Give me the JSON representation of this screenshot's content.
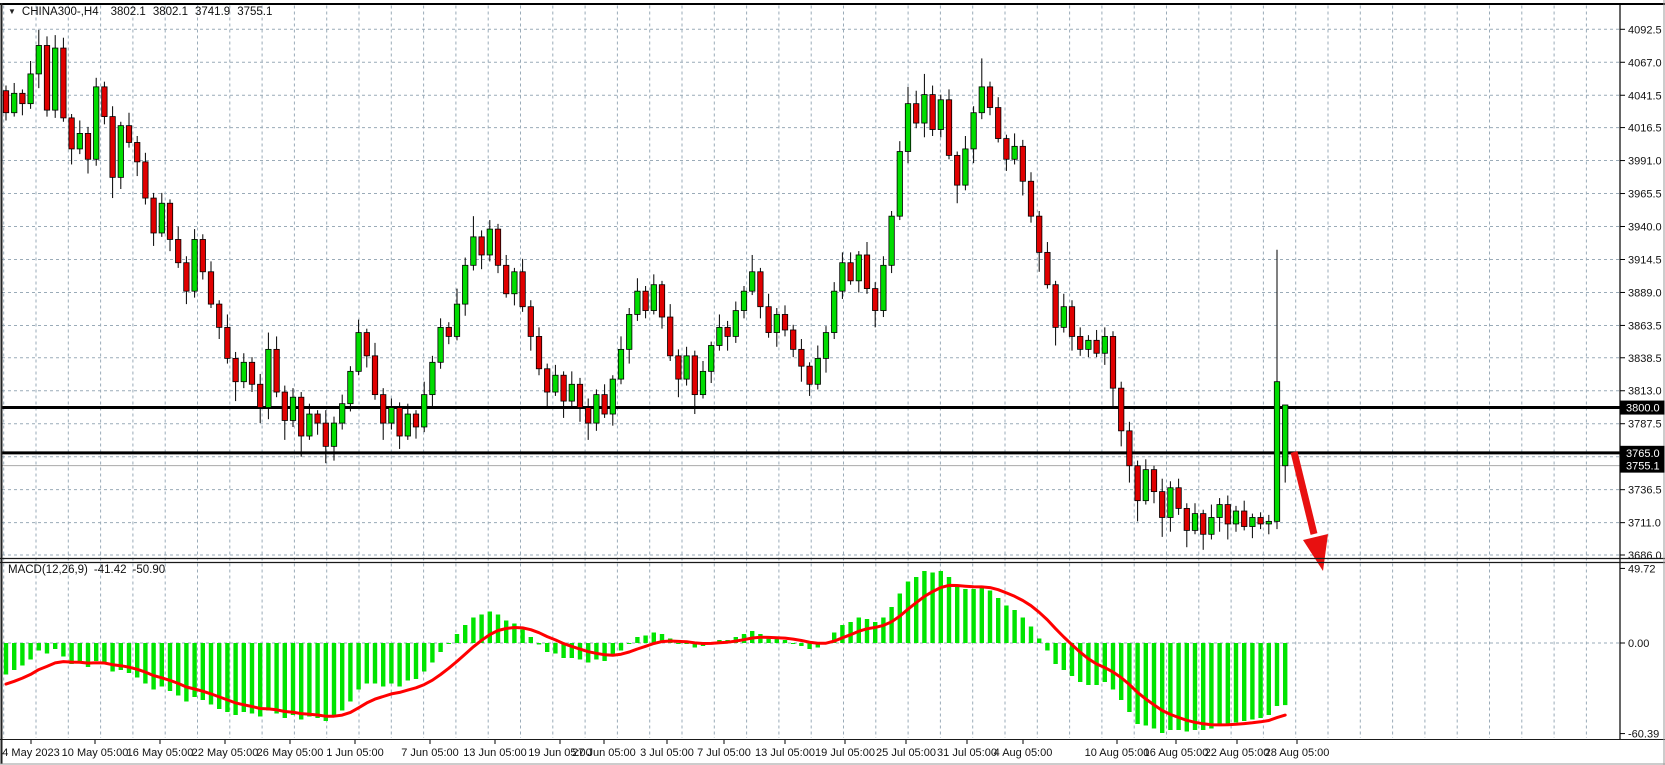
{
  "header": {
    "icon": "▼",
    "symbol_period": "CHINA300-,H4",
    "open": "3802.1",
    "high": "3802.1",
    "low": "3741.9",
    "close": "3755.1"
  },
  "indicator": {
    "label": "MACD(12,26,9)",
    "macd_value": "-41.42",
    "signal_value": "-50.90"
  },
  "colors": {
    "bull": "#00dc00",
    "bear": "#e00000",
    "wick": "#000000",
    "grid": "#9aabb8",
    "histogram": "#00e400",
    "signal": "#ff0000",
    "line_object": "#000000",
    "bid_line": "#aaaaaa",
    "arrow": "#e81010",
    "label_box": "#000000",
    "label_box_text": "#ffffff"
  },
  "chart_data": {
    "type": "candlestick",
    "symbol": "CHINA300-",
    "timeframe": "H4",
    "current_bar": {
      "open": 3802.1,
      "high": 3802.1,
      "low": 3741.9,
      "close": 3755.1
    },
    "price_axis": {
      "range": [
        3678,
        4104
      ],
      "ticks": [
        "4092.5",
        "4067.0",
        "4041.5",
        "4016.5",
        "3991.0",
        "3965.5",
        "3940.0",
        "3914.5",
        "3889.0",
        "3863.5",
        "3838.5",
        "3813.0",
        "3787.5",
        "3736.5",
        "3711.0",
        "3686.0"
      ],
      "unlabeled_gridlines": [
        3762.0
      ],
      "boxed_labels": [
        {
          "text": "3800.0",
          "price": 3800.0,
          "kind": "hline"
        },
        {
          "text": "3765.0",
          "price": 3765.0,
          "kind": "hline"
        },
        {
          "text": "3755.1",
          "price": 3755.1,
          "kind": "bid"
        }
      ]
    },
    "time_axis": {
      "labels": [
        [
          "4 May 2023",
          31
        ],
        [
          "10 May 05:00",
          95
        ],
        [
          "16 May 05:00",
          160
        ],
        [
          "22 May 05:00",
          225
        ],
        [
          "26 May 05:00",
          290
        ],
        [
          "1 Jun 05:00",
          355
        ],
        [
          "7 Jun 05:00",
          430
        ],
        [
          "13 Jun 05:00",
          495
        ],
        [
          "19 Jun 05:00",
          560
        ],
        [
          "27 Jun 05:00",
          604
        ],
        [
          "3 Jul 05:00",
          667
        ],
        [
          "7 Jul 05:00",
          724
        ],
        [
          "13 Jul 05:00",
          785
        ],
        [
          "19 Jul 05:00",
          845
        ],
        [
          "25 Jul 05:00",
          906
        ],
        [
          "31 Jul 05:00",
          967
        ],
        [
          "4 Aug 05:00",
          1023
        ],
        [
          "10 Aug 05:00",
          1117
        ],
        [
          "16 Aug 05:00",
          1176
        ],
        [
          "22 Aug 05:00",
          1237
        ],
        [
          "28 Aug 05:00",
          1297
        ]
      ]
    },
    "candles": [
      [
        4045,
        4049,
        4022,
        4028
      ],
      [
        4028,
        4051,
        4025,
        4043
      ],
      [
        4043,
        4046,
        4026,
        4035
      ],
      [
        4035,
        4068,
        4031,
        4058
      ],
      [
        4058,
        4092,
        4047,
        4080
      ],
      [
        4080,
        4087,
        4025,
        4030
      ],
      [
        4030,
        4088,
        4024,
        4078
      ],
      [
        4078,
        4086,
        4021,
        4024
      ],
      [
        4024,
        4027,
        3988,
        4000
      ],
      [
        4000,
        4022,
        3996,
        4012
      ],
      [
        4012,
        4017,
        3981,
        3992
      ],
      [
        3992,
        4055,
        3987,
        4048
      ],
      [
        4048,
        4052,
        4019,
        4025
      ],
      [
        4025,
        4033,
        3962,
        3978
      ],
      [
        3978,
        4021,
        3969,
        4018
      ],
      [
        4018,
        4028,
        4001,
        4005
      ],
      [
        4005,
        4010,
        3979,
        3990
      ],
      [
        3990,
        3997,
        3957,
        3962
      ],
      [
        3962,
        3966,
        3925,
        3935
      ],
      [
        3935,
        3966,
        3932,
        3958
      ],
      [
        3958,
        3961,
        3921,
        3930
      ],
      [
        3930,
        3940,
        3908,
        3912
      ],
      [
        3912,
        3917,
        3880,
        3890
      ],
      [
        3890,
        3938,
        3885,
        3930
      ],
      [
        3930,
        3934,
        3899,
        3905
      ],
      [
        3905,
        3913,
        3877,
        3880
      ],
      [
        3880,
        3883,
        3853,
        3862
      ],
      [
        3862,
        3872,
        3834,
        3838
      ],
      [
        3838,
        3843,
        3805,
        3820
      ],
      [
        3820,
        3842,
        3815,
        3835
      ],
      [
        3835,
        3839,
        3812,
        3818
      ],
      [
        3818,
        3826,
        3788,
        3800
      ],
      [
        3800,
        3858,
        3791,
        3845
      ],
      [
        3845,
        3855,
        3808,
        3812
      ],
      [
        3812,
        3817,
        3775,
        3790
      ],
      [
        3790,
        3815,
        3785,
        3808
      ],
      [
        3808,
        3812,
        3762,
        3778
      ],
      [
        3778,
        3803,
        3775,
        3795
      ],
      [
        3795,
        3798,
        3779,
        3788
      ],
      [
        3788,
        3798,
        3757,
        3770
      ],
      [
        3770,
        3793,
        3759,
        3788
      ],
      [
        3788,
        3810,
        3783,
        3803
      ],
      [
        3803,
        3832,
        3797,
        3828
      ],
      [
        3828,
        3868,
        3825,
        3858
      ],
      [
        3858,
        3861,
        3831,
        3840
      ],
      [
        3840,
        3850,
        3806,
        3810
      ],
      [
        3810,
        3815,
        3775,
        3788
      ],
      [
        3788,
        3807,
        3783,
        3800
      ],
      [
        3800,
        3804,
        3768,
        3778
      ],
      [
        3778,
        3803,
        3775,
        3795
      ],
      [
        3795,
        3798,
        3776,
        3785
      ],
      [
        3785,
        3820,
        3781,
        3810
      ],
      [
        3810,
        3840,
        3799,
        3835
      ],
      [
        3835,
        3869,
        3830,
        3862
      ],
      [
        3862,
        3866,
        3849,
        3855
      ],
      [
        3855,
        3892,
        3852,
        3880
      ],
      [
        3880,
        3916,
        3871,
        3910
      ],
      [
        3910,
        3948,
        3906,
        3932
      ],
      [
        3932,
        3937,
        3907,
        3918
      ],
      [
        3918,
        3945,
        3913,
        3938
      ],
      [
        3938,
        3942,
        3904,
        3910
      ],
      [
        3910,
        3918,
        3885,
        3888
      ],
      [
        3888,
        3908,
        3879,
        3905
      ],
      [
        3905,
        3915,
        3874,
        3878
      ],
      [
        3878,
        3883,
        3844,
        3855
      ],
      [
        3855,
        3862,
        3825,
        3830
      ],
      [
        3830,
        3834,
        3800,
        3812
      ],
      [
        3812,
        3833,
        3809,
        3825
      ],
      [
        3825,
        3828,
        3792,
        3805
      ],
      [
        3805,
        3828,
        3801,
        3818
      ],
      [
        3818,
        3823,
        3789,
        3800
      ],
      [
        3800,
        3807,
        3775,
        3788
      ],
      [
        3788,
        3814,
        3782,
        3810
      ],
      [
        3810,
        3818,
        3792,
        3795
      ],
      [
        3795,
        3825,
        3786,
        3822
      ],
      [
        3822,
        3855,
        3818,
        3845
      ],
      [
        3845,
        3877,
        3834,
        3872
      ],
      [
        3872,
        3900,
        3867,
        3890
      ],
      [
        3890,
        3894,
        3869,
        3875
      ],
      [
        3875,
        3903,
        3872,
        3895
      ],
      [
        3895,
        3898,
        3861,
        3870
      ],
      [
        3870,
        3880,
        3836,
        3840
      ],
      [
        3840,
        3845,
        3808,
        3822
      ],
      [
        3822,
        3847,
        3817,
        3840
      ],
      [
        3840,
        3844,
        3795,
        3810
      ],
      [
        3810,
        3836,
        3807,
        3828
      ],
      [
        3828,
        3851,
        3819,
        3848
      ],
      [
        3848,
        3872,
        3844,
        3862
      ],
      [
        3862,
        3867,
        3844,
        3855
      ],
      [
        3855,
        3882,
        3850,
        3875
      ],
      [
        3875,
        3894,
        3869,
        3890
      ],
      [
        3890,
        3918,
        3887,
        3905
      ],
      [
        3905,
        3908,
        3869,
        3878
      ],
      [
        3878,
        3888,
        3854,
        3858
      ],
      [
        3858,
        3877,
        3847,
        3872
      ],
      [
        3872,
        3879,
        3855,
        3860
      ],
      [
        3860,
        3864,
        3839,
        3845
      ],
      [
        3845,
        3853,
        3820,
        3832
      ],
      [
        3832,
        3835,
        3809,
        3818
      ],
      [
        3818,
        3848,
        3814,
        3838
      ],
      [
        3838,
        3863,
        3827,
        3858
      ],
      [
        3858,
        3897,
        3853,
        3890
      ],
      [
        3890,
        3920,
        3884,
        3912
      ],
      [
        3912,
        3920,
        3895,
        3898
      ],
      [
        3898,
        3921,
        3889,
        3918
      ],
      [
        3918,
        3928,
        3888,
        3892
      ],
      [
        3892,
        3897,
        3862,
        3875
      ],
      [
        3875,
        3917,
        3870,
        3910
      ],
      [
        3910,
        3952,
        3904,
        3948
      ],
      [
        3948,
        4006,
        3945,
        3998
      ],
      [
        3998,
        4048,
        3989,
        4035
      ],
      [
        4035,
        4045,
        4016,
        4020
      ],
      [
        4020,
        4058,
        4009,
        4042
      ],
      [
        4042,
        4049,
        4010,
        4015
      ],
      [
        4015,
        4042,
        4009,
        4038
      ],
      [
        4038,
        4046,
        3992,
        3995
      ],
      [
        3995,
        3998,
        3958,
        3972
      ],
      [
        3972,
        4010,
        3968,
        4000
      ],
      [
        4000,
        4033,
        3989,
        4028
      ],
      [
        4028,
        4070,
        4023,
        4048
      ],
      [
        4048,
        4052,
        4026,
        4032
      ],
      [
        4032,
        4040,
        4005,
        4008
      ],
      [
        4008,
        4011,
        3983,
        3992
      ],
      [
        3992,
        4012,
        3988,
        4002
      ],
      [
        4002,
        4007,
        3964,
        3975
      ],
      [
        3975,
        3982,
        3943,
        3948
      ],
      [
        3948,
        3952,
        3905,
        3920
      ],
      [
        3920,
        3928,
        3892,
        3895
      ],
      [
        3895,
        3898,
        3848,
        3862
      ],
      [
        3862,
        3888,
        3858,
        3878
      ],
      [
        3878,
        3883,
        3844,
        3855
      ],
      [
        3855,
        3862,
        3840,
        3845
      ],
      [
        3845,
        3856,
        3839,
        3852
      ],
      [
        3852,
        3860,
        3839,
        3842
      ],
      [
        3842,
        3862,
        3833,
        3855
      ],
      [
        3855,
        3859,
        3800,
        3815
      ],
      [
        3815,
        3820,
        3770,
        3782
      ],
      [
        3782,
        3789,
        3742,
        3755
      ],
      [
        3755,
        3759,
        3712,
        3728
      ],
      [
        3728,
        3760,
        3725,
        3752
      ],
      [
        3752,
        3755,
        3726,
        3735
      ],
      [
        3735,
        3745,
        3700,
        3715
      ],
      [
        3715,
        3743,
        3704,
        3738
      ],
      [
        3738,
        3745,
        3717,
        3722
      ],
      [
        3722,
        3726,
        3692,
        3705
      ],
      [
        3705,
        3726,
        3702,
        3718
      ],
      [
        3718,
        3721,
        3690,
        3702
      ],
      [
        3702,
        3725,
        3698,
        3715
      ],
      [
        3715,
        3730,
        3704,
        3725
      ],
      [
        3725,
        3732,
        3698,
        3710
      ],
      [
        3710,
        3724,
        3704,
        3720
      ],
      [
        3720,
        3728,
        3705,
        3708
      ],
      [
        3708,
        3718,
        3699,
        3715
      ],
      [
        3715,
        3719,
        3706,
        3710
      ],
      [
        3710,
        3717,
        3702,
        3712
      ],
      [
        3712,
        3922,
        3706,
        3820
      ],
      [
        3802,
        3802,
        3742,
        3755,
        1
      ]
    ],
    "macd": {
      "label": "MACD(12,26,9)",
      "value": -41.42,
      "signal": -50.9,
      "signal_seed": -29,
      "ticks": [
        {
          "v": 49.72,
          "t": "49.72"
        },
        {
          "v": 0,
          "t": "0.00"
        },
        {
          "v": -60.39,
          "t": "-60.39"
        }
      ],
      "histogram": [
        -21,
        -18,
        -15,
        -11,
        -5,
        -7,
        -4,
        -9,
        -14,
        -13,
        -16,
        -12,
        -14,
        -19,
        -18,
        -20,
        -23,
        -27,
        -31,
        -29,
        -32,
        -35,
        -39,
        -36,
        -38,
        -41,
        -44,
        -46,
        -48,
        -46,
        -47,
        -49,
        -45,
        -47,
        -50,
        -48,
        -51,
        -49,
        -50,
        -52,
        -49,
        -45,
        -39,
        -31,
        -27,
        -27,
        -29,
        -27,
        -29,
        -25,
        -24,
        -19,
        -13,
        -6,
        0,
        6,
        12,
        17,
        19,
        21,
        19,
        15,
        13,
        9,
        4,
        -1,
        -6,
        -7,
        -10,
        -10,
        -11,
        -13,
        -11,
        -12,
        -9,
        -5,
        0,
        4,
        5,
        7,
        6,
        3,
        0,
        0,
        -3,
        -2,
        0,
        2,
        2,
        4,
        6,
        8,
        6,
        3,
        3,
        2,
        0,
        -2,
        -4,
        -3,
        0,
        7,
        12,
        14,
        17,
        16,
        14,
        17,
        24,
        33,
        41,
        44,
        48,
        47,
        48,
        44,
        38,
        36,
        36,
        37,
        35,
        30,
        25,
        22,
        17,
        11,
        3,
        -5,
        -14,
        -18,
        -22,
        -26,
        -28,
        -28,
        -26,
        -31,
        -38,
        -46,
        -54,
        -55,
        -57,
        -60,
        -58,
        -58,
        -59,
        -58,
        -58,
        -57,
        -55,
        -54,
        -53,
        -52,
        -51,
        -50,
        -48,
        -42,
        -41.4
      ]
    },
    "objects": {
      "hlines": [
        {
          "price": 3800.0,
          "label": "3800.0",
          "stroke_width": 3
        },
        {
          "price": 3765.0,
          "label": "3765.0",
          "stroke_width": 3
        }
      ],
      "bid_line": {
        "price": 3755.1,
        "label": "3755.1"
      },
      "arrow": {
        "shaft": [
          [
            1294,
            452
          ],
          [
            1314,
            534
          ]
        ],
        "head": [
          [
            1323,
            571
          ],
          [
            1303,
            540
          ],
          [
            1328,
            534
          ]
        ]
      }
    }
  }
}
